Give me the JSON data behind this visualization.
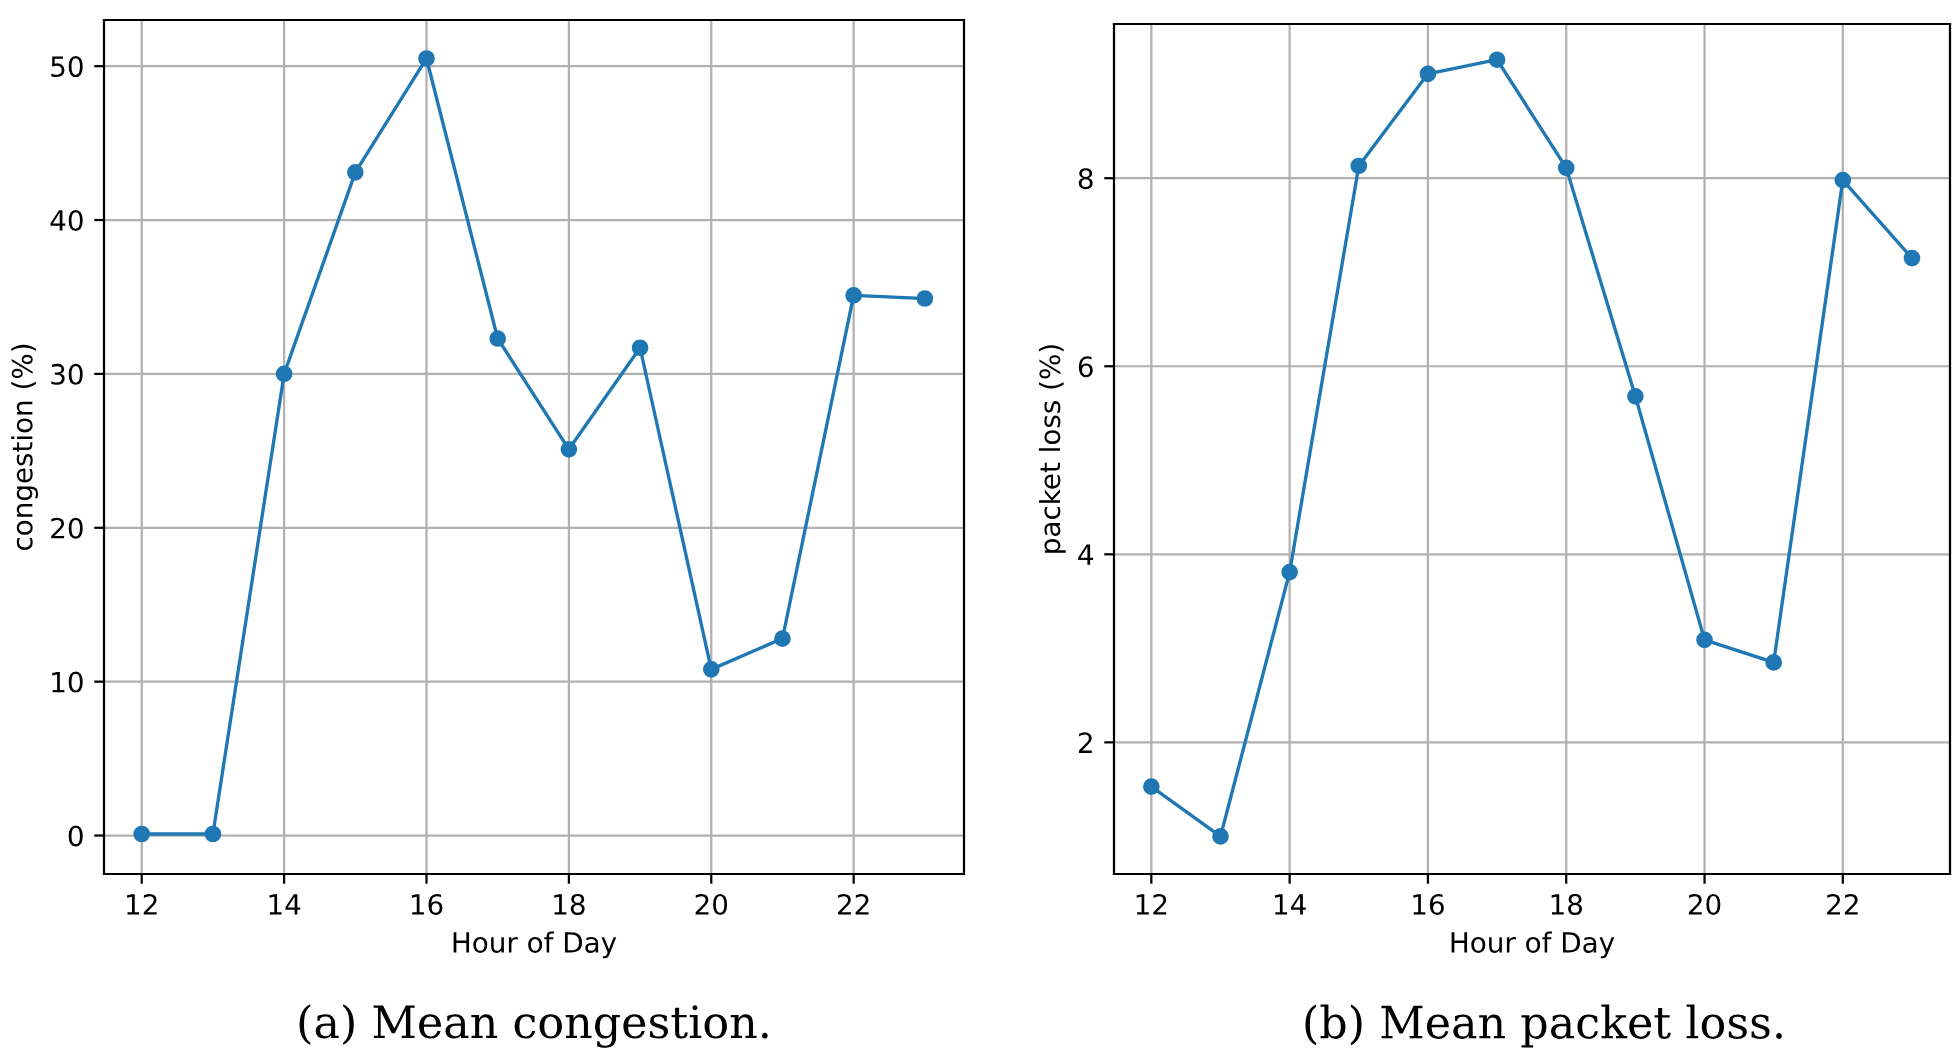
{
  "chart_data": [
    {
      "type": "line",
      "xlabel": "Hour of Day",
      "ylabel": "congestion (%)",
      "x": [
        12,
        13,
        14,
        15,
        16,
        17,
        18,
        19,
        20,
        21,
        22,
        23
      ],
      "series": [
        {
          "color": "#1f77b4",
          "values": [
            0.1,
            0.1,
            30.0,
            43.1,
            50.5,
            32.3,
            25.1,
            31.7,
            10.8,
            12.8,
            35.1,
            34.9
          ]
        }
      ],
      "xlim": [
        11.47,
        23.55
      ],
      "xticks": [
        12,
        14,
        16,
        18,
        20,
        22
      ],
      "ylim": [
        -2.5,
        53
      ],
      "yticks": [
        0,
        10,
        20,
        30,
        40,
        50
      ],
      "grid": true,
      "marker": "circle",
      "line_style": "solid",
      "annotations": [
        "(a) Mean congestion."
      ]
    },
    {
      "type": "line",
      "xlabel": "Hour of Day",
      "ylabel": "packet loss (%)",
      "x": [
        12,
        13,
        14,
        15,
        16,
        17,
        18,
        19,
        20,
        21,
        22,
        23
      ],
      "series": [
        {
          "color": "#1f77b4",
          "values": [
            1.53,
            1.0,
            3.81,
            8.13,
            9.11,
            9.26,
            8.11,
            5.68,
            3.09,
            2.85,
            7.98,
            7.15
          ]
        }
      ],
      "xlim": [
        11.46,
        23.55
      ],
      "xticks": [
        12,
        14,
        16,
        18,
        20,
        22
      ],
      "ylim": [
        0.6,
        9.64
      ],
      "yticks": [
        2,
        4,
        6,
        8
      ],
      "grid": true,
      "marker": "circle",
      "line_style": "solid",
      "annotations": [
        "(b) Mean packet loss."
      ]
    }
  ]
}
